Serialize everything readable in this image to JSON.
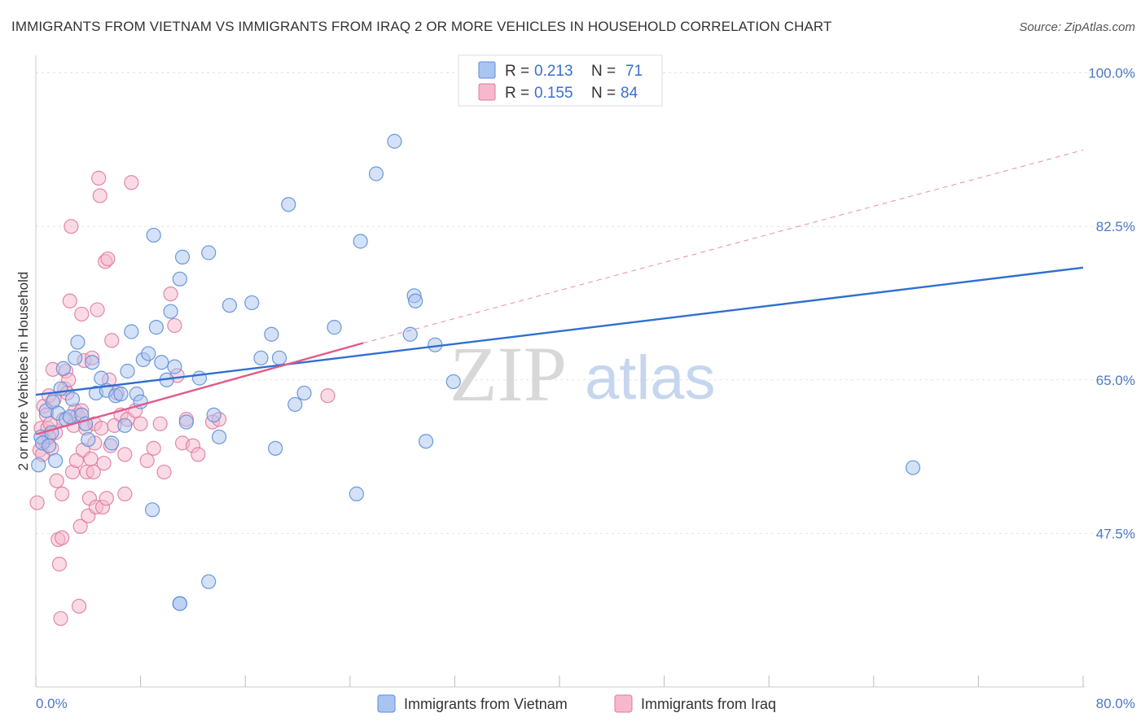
{
  "chart_data": {
    "type": "scatter",
    "title": "IMMIGRANTS FROM VIETNAM VS IMMIGRANTS FROM IRAQ 2 OR MORE VEHICLES IN HOUSEHOLD CORRELATION CHART",
    "source": "Source: ZipAtlas.com",
    "ylabel": "2 or more Vehicles in Household",
    "xlim": [
      0,
      80
    ],
    "ylim": [
      30,
      102
    ],
    "x_tick_labels": [
      "0.0%",
      "80.0%"
    ],
    "y_ticks": [
      {
        "value": 100.0,
        "label": "100.0%"
      },
      {
        "value": 82.5,
        "label": "82.5%"
      },
      {
        "value": 65.0,
        "label": "65.0%"
      },
      {
        "value": 47.5,
        "label": "47.5%"
      }
    ],
    "watermark": {
      "zip": "ZIP",
      "atlas": "atlas"
    },
    "legend": [
      {
        "r_label": "R =",
        "r_value": "0.213",
        "n_label": "N =",
        "n_value": "71"
      },
      {
        "r_label": "R =",
        "r_value": "0.155",
        "n_label": "N =",
        "n_value": "84"
      }
    ],
    "series": [
      {
        "name": "Immigrants from Vietnam",
        "fill": "#a9c4f0",
        "stroke": "#5b8ed8",
        "trend_color": "#2f6fd0",
        "trend": {
          "x": [
            0,
            80
          ],
          "y": [
            63.3,
            77.8
          ]
        },
        "points": [
          [
            0.2,
            55.3
          ],
          [
            0.4,
            58.5
          ],
          [
            0.5,
            57.8
          ],
          [
            0.8,
            61.5
          ],
          [
            1.0,
            57.5
          ],
          [
            1.2,
            59.0
          ],
          [
            1.3,
            62.5
          ],
          [
            1.5,
            55.8
          ],
          [
            1.7,
            61.2
          ],
          [
            1.9,
            64.0
          ],
          [
            2.1,
            66.3
          ],
          [
            2.3,
            60.5
          ],
          [
            2.6,
            60.8
          ],
          [
            2.8,
            62.8
          ],
          [
            3.0,
            67.5
          ],
          [
            3.2,
            69.3
          ],
          [
            3.5,
            61.0
          ],
          [
            3.8,
            60.0
          ],
          [
            4.0,
            58.2
          ],
          [
            4.3,
            67.0
          ],
          [
            4.6,
            63.5
          ],
          [
            5.0,
            65.2
          ],
          [
            5.4,
            63.8
          ],
          [
            5.8,
            57.8
          ],
          [
            6.1,
            63.2
          ],
          [
            6.5,
            63.4
          ],
          [
            6.8,
            59.8
          ],
          [
            7.0,
            66.0
          ],
          [
            7.3,
            70.5
          ],
          [
            7.7,
            63.4
          ],
          [
            8.0,
            62.5
          ],
          [
            8.2,
            67.3
          ],
          [
            8.6,
            68.0
          ],
          [
            8.9,
            50.2
          ],
          [
            9.0,
            81.5
          ],
          [
            9.2,
            71.0
          ],
          [
            9.6,
            67.0
          ],
          [
            10.0,
            65.0
          ],
          [
            10.3,
            72.8
          ],
          [
            10.6,
            66.5
          ],
          [
            11.0,
            76.5
          ],
          [
            11.2,
            79.0
          ],
          [
            11.5,
            60.2
          ],
          [
            11.0,
            39.5
          ],
          [
            12.5,
            65.2
          ],
          [
            13.2,
            79.5
          ],
          [
            13.6,
            61.0
          ],
          [
            14.0,
            58.5
          ],
          [
            14.8,
            73.5
          ],
          [
            16.5,
            73.8
          ],
          [
            17.2,
            67.5
          ],
          [
            18.0,
            70.2
          ],
          [
            18.3,
            57.2
          ],
          [
            18.6,
            67.5
          ],
          [
            19.3,
            85.0
          ],
          [
            19.8,
            62.2
          ],
          [
            20.5,
            63.5
          ],
          [
            22.8,
            71.0
          ],
          [
            24.5,
            52.0
          ],
          [
            24.8,
            80.8
          ],
          [
            26.0,
            88.5
          ],
          [
            27.4,
            92.2
          ],
          [
            28.6,
            70.2
          ],
          [
            28.9,
            74.6
          ],
          [
            29.0,
            74.0
          ],
          [
            29.8,
            58.0
          ],
          [
            30.5,
            69.0
          ],
          [
            31.9,
            64.8
          ],
          [
            67.0,
            55.0
          ],
          [
            13.2,
            42.0
          ],
          [
            11.0,
            39.5
          ]
        ]
      },
      {
        "name": "Immigrants from Iraq",
        "fill": "#f5b8cc",
        "stroke": "#e07aa0",
        "trend_color": "#e05a8c",
        "trend": {
          "x": [
            0,
            25
          ],
          "y": [
            58.8,
            69.2
          ]
        },
        "trend_dashed": {
          "x": [
            25,
            80
          ],
          "y": [
            69.2,
            91.2
          ]
        },
        "points": [
          [
            0.1,
            51.0
          ],
          [
            0.3,
            57.0
          ],
          [
            0.4,
            59.5
          ],
          [
            0.5,
            56.5
          ],
          [
            0.6,
            62.0
          ],
          [
            0.7,
            58.0
          ],
          [
            0.8,
            61.0
          ],
          [
            0.9,
            59.5
          ],
          [
            1.0,
            63.2
          ],
          [
            1.1,
            60.0
          ],
          [
            1.2,
            57.2
          ],
          [
            1.3,
            66.2
          ],
          [
            1.4,
            62.8
          ],
          [
            1.5,
            59.0
          ],
          [
            1.6,
            53.5
          ],
          [
            1.7,
            46.8
          ],
          [
            1.8,
            44.0
          ],
          [
            1.9,
            37.8
          ],
          [
            2.0,
            52.0
          ],
          [
            2.1,
            60.5
          ],
          [
            2.2,
            64.0
          ],
          [
            2.3,
            66.0
          ],
          [
            2.4,
            63.5
          ],
          [
            2.5,
            65.0
          ],
          [
            2.6,
            74.0
          ],
          [
            2.7,
            82.5
          ],
          [
            2.8,
            54.5
          ],
          [
            2.9,
            59.8
          ],
          [
            3.0,
            61.5
          ],
          [
            3.1,
            55.8
          ],
          [
            3.2,
            61.0
          ],
          [
            3.3,
            39.2
          ],
          [
            3.4,
            48.3
          ],
          [
            3.5,
            72.5
          ],
          [
            3.6,
            57.0
          ],
          [
            3.7,
            67.2
          ],
          [
            3.8,
            59.5
          ],
          [
            3.9,
            54.5
          ],
          [
            4.0,
            49.5
          ],
          [
            4.1,
            51.5
          ],
          [
            4.2,
            56.0
          ],
          [
            4.3,
            67.5
          ],
          [
            4.4,
            54.5
          ],
          [
            4.5,
            60.0
          ],
          [
            4.6,
            50.5
          ],
          [
            4.7,
            73.0
          ],
          [
            4.8,
            88.0
          ],
          [
            4.9,
            86.0
          ],
          [
            5.0,
            59.5
          ],
          [
            5.1,
            50.5
          ],
          [
            5.2,
            55.5
          ],
          [
            5.3,
            78.5
          ],
          [
            5.4,
            51.5
          ],
          [
            5.5,
            78.8
          ],
          [
            5.6,
            65.0
          ],
          [
            5.7,
            57.5
          ],
          [
            5.8,
            69.5
          ],
          [
            6.0,
            59.8
          ],
          [
            6.2,
            63.5
          ],
          [
            6.5,
            61.0
          ],
          [
            6.8,
            56.5
          ],
          [
            7.0,
            60.5
          ],
          [
            7.3,
            87.5
          ],
          [
            7.6,
            61.5
          ],
          [
            8.0,
            60.0
          ],
          [
            8.5,
            55.8
          ],
          [
            9.0,
            57.2
          ],
          [
            9.5,
            60.0
          ],
          [
            9.8,
            54.5
          ],
          [
            10.3,
            74.8
          ],
          [
            10.6,
            71.2
          ],
          [
            10.8,
            65.5
          ],
          [
            11.2,
            57.8
          ],
          [
            11.5,
            60.5
          ],
          [
            12.0,
            57.5
          ],
          [
            12.4,
            56.5
          ],
          [
            13.5,
            60.2
          ],
          [
            14.0,
            60.5
          ],
          [
            22.3,
            63.2
          ],
          [
            1.0,
            58.5
          ],
          [
            2.0,
            47.0
          ],
          [
            3.5,
            61.5
          ],
          [
            4.5,
            57.8
          ],
          [
            6.8,
            52.0
          ]
        ]
      }
    ]
  }
}
